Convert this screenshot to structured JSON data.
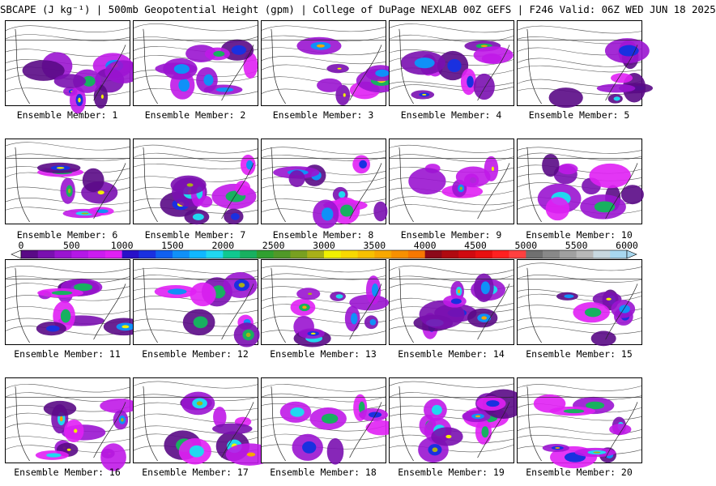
{
  "header": {
    "title": "SBCAPE (J kg⁻¹) | 500mb Geopotential Height (gpm) | College of DuPage NEXLAB 00Z GEFS | F246 Valid: 06Z WED JUN 18 2025"
  },
  "members": [
    "Ensemble Member: 1",
    "Ensemble Member: 2",
    "Ensemble Member: 3",
    "Ensemble Member: 4",
    "Ensemble Member: 5",
    "Ensemble Member: 6",
    "Ensemble Member: 7",
    "Ensemble Member: 8",
    "Ensemble Member: 9",
    "Ensemble Member: 10",
    "Ensemble Member: 11",
    "Ensemble Member: 12",
    "Ensemble Member: 13",
    "Ensemble Member: 14",
    "Ensemble Member: 15",
    "Ensemble Member: 16",
    "Ensemble Member: 17",
    "Ensemble Member: 18",
    "Ensemble Member: 19",
    "Ensemble Member: 20"
  ],
  "colorbar": {
    "labels": [
      "0",
      "500",
      "1000",
      "1500",
      "2000",
      "2500",
      "3000",
      "3500",
      "4000",
      "4500",
      "5000",
      "5500",
      "6000"
    ],
    "min": 0,
    "max": 6000,
    "colors": [
      "#5a0a86",
      "#7a10b0",
      "#9a14d0",
      "#b418e6",
      "#cc1cf0",
      "#e020f4",
      "#2810c8",
      "#1a30e0",
      "#1060f0",
      "#1090f8",
      "#10b8ff",
      "#20d8f0",
      "#10c890",
      "#18b060",
      "#30a030",
      "#509828",
      "#78a020",
      "#a8b018",
      "#f0f000",
      "#f8d800",
      "#f8c000",
      "#f8a800",
      "#f89000",
      "#f87800",
      "#8c0a1a",
      "#b00a10",
      "#d00a10",
      "#e81010",
      "#ff2020",
      "#ff4040",
      "#707070",
      "#888888",
      "#a0a0a0",
      "#b8b8b8",
      "#c8d8e0",
      "#a8d8f0"
    ]
  }
}
